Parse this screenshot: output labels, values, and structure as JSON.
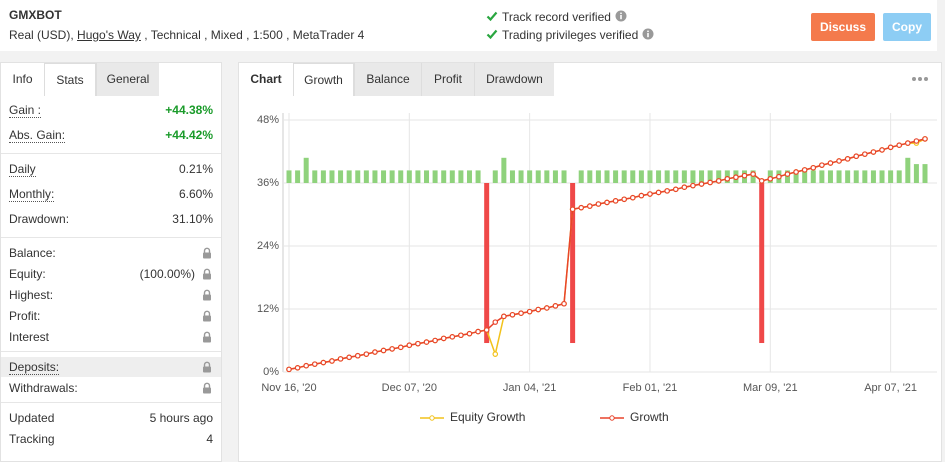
{
  "header": {
    "title": "GMXBOT",
    "account": "Real (USD),",
    "broker": "Hugo's Way",
    "details": ", Technical , Mixed , 1:500 , MetaTrader 4",
    "verifications": [
      "Track record verified",
      "Trading privileges verified"
    ],
    "buttons": [
      "Discuss",
      "Copy"
    ]
  },
  "left_tabs": {
    "items": [
      "Info",
      "Stats",
      "General"
    ],
    "active": 1
  },
  "stats": [
    [
      {
        "label": "Gain :",
        "value": "+44.38%",
        "positive": true,
        "dotted": true
      },
      {
        "label": "Abs. Gain:",
        "value": "+44.42%",
        "positive": true,
        "dotted": true
      }
    ],
    [
      {
        "label": "Daily",
        "value": "0.21%",
        "dotted": true
      },
      {
        "label": "Monthly:",
        "value": "6.60%",
        "dotted": true
      },
      {
        "label": "Drawdown:",
        "value": "31.10%"
      }
    ],
    [
      {
        "label": "Balance:",
        "locked": true
      },
      {
        "label": "Equity:",
        "value": "(100.00%)",
        "locked": true
      },
      {
        "label": "Highest:",
        "locked": true
      },
      {
        "label": "Profit:",
        "locked": true
      },
      {
        "label": "Interest",
        "locked": true
      }
    ],
    [
      {
        "label": "Deposits:",
        "locked": true,
        "dotted": true,
        "highlight": true
      },
      {
        "label": "Withdrawals:",
        "locked": true
      }
    ],
    [
      {
        "label": "Updated",
        "value": "5 hours ago"
      },
      {
        "label": "Tracking",
        "value": "4"
      }
    ]
  ],
  "chart_tabs": {
    "items": [
      "Chart",
      "Growth",
      "Balance",
      "Profit",
      "Drawdown"
    ],
    "active": 1
  },
  "chart_data": {
    "type": "line",
    "categories": [
      "Nov 16, '20",
      null,
      null,
      null,
      null,
      null,
      null,
      null,
      null,
      null,
      null,
      null,
      null,
      null,
      "Dec 07, '20",
      null,
      null,
      null,
      null,
      null,
      null,
      null,
      null,
      null,
      null,
      null,
      null,
      null,
      "Jan 04, '21",
      null,
      null,
      null,
      null,
      null,
      null,
      null,
      null,
      null,
      null,
      null,
      null,
      null,
      "Feb 01, '21",
      null,
      null,
      null,
      null,
      null,
      null,
      null,
      null,
      null,
      null,
      null,
      null,
      null,
      "Mar 09, '21",
      null,
      null,
      null,
      null,
      null,
      null,
      null,
      null,
      null,
      null,
      null,
      null,
      null,
      "Apr 07, '21",
      null,
      null,
      null,
      null
    ],
    "series": [
      {
        "name": "Equity Growth",
        "color": "#f2c21b",
        "values": [
          0.5,
          0.8,
          1.2,
          1.5,
          1.8,
          2.1,
          2.5,
          2.8,
          3.1,
          3.4,
          3.8,
          4.1,
          4.4,
          4.7,
          5.1,
          5.4,
          5.7,
          6.0,
          6.4,
          6.7,
          7.0,
          7.3,
          7.7,
          8.0,
          3.4,
          10.6,
          10.9,
          11.2,
          11.5,
          11.9,
          12.2,
          12.6,
          13.0,
          31.0,
          31.3,
          31.6,
          32.0,
          32.3,
          32.6,
          32.9,
          33.2,
          33.6,
          33.9,
          34.2,
          34.5,
          34.8,
          35.2,
          35.5,
          35.8,
          36.1,
          36.4,
          36.8,
          37.1,
          37.4,
          37.7,
          36.4,
          36.8,
          37.2,
          37.7,
          38.1,
          38.5,
          38.9,
          39.4,
          39.8,
          40.2,
          40.6,
          41.1,
          41.5,
          41.9,
          42.3,
          42.8,
          43.2,
          43.6,
          43.6,
          44.4
        ]
      },
      {
        "name": "Growth",
        "color": "#e8442c",
        "values": [
          0.5,
          0.8,
          1.2,
          1.5,
          1.8,
          2.1,
          2.5,
          2.8,
          3.1,
          3.4,
          3.8,
          4.1,
          4.4,
          4.7,
          5.1,
          5.4,
          5.7,
          6.0,
          6.4,
          6.7,
          7.0,
          7.3,
          7.7,
          8.0,
          9.5,
          10.6,
          10.9,
          11.2,
          11.5,
          11.9,
          12.2,
          12.6,
          13.0,
          31.0,
          31.3,
          31.6,
          32.0,
          32.3,
          32.6,
          32.9,
          33.2,
          33.6,
          33.9,
          34.2,
          34.5,
          34.8,
          35.2,
          35.5,
          35.8,
          36.1,
          36.4,
          36.8,
          37.1,
          37.4,
          37.7,
          36.4,
          36.8,
          37.2,
          37.7,
          38.1,
          38.5,
          38.9,
          39.4,
          39.8,
          40.2,
          40.6,
          41.1,
          41.5,
          41.9,
          42.3,
          42.8,
          43.2,
          43.6,
          44.0,
          44.4
        ]
      },
      {
        "type": "bar",
        "axis": "y2",
        "color": "#8fd27c",
        "negative_color": "#ef4848",
        "values": [
          0.2,
          0.2,
          0.4,
          0.2,
          0.2,
          0.2,
          0.2,
          0.2,
          0.2,
          0.2,
          0.2,
          0.2,
          0.2,
          0.2,
          0.2,
          0.2,
          0.2,
          0.2,
          0.2,
          0.2,
          0.2,
          0.2,
          0.2,
          -2.54,
          0.2,
          0.4,
          0.2,
          0.2,
          0.2,
          0.2,
          0.2,
          0.2,
          0.2,
          -2.54,
          0.2,
          0.2,
          0.2,
          0.2,
          0.2,
          0.2,
          0.2,
          0.2,
          0.2,
          0.2,
          0.2,
          0.2,
          0.2,
          0.2,
          0.2,
          0.2,
          0.2,
          0.2,
          0.2,
          0.2,
          0.2,
          -2.54,
          0.2,
          0.2,
          0.2,
          0.2,
          0.2,
          0.2,
          0.2,
          0.2,
          0.2,
          0.2,
          0.2,
          0.2,
          0.2,
          0.2,
          0.2,
          0.2,
          0.4,
          0.3,
          0.3
        ]
      }
    ],
    "ylim": [
      0,
      48
    ],
    "yticks": [
      {
        "value": 0,
        "label": "0%"
      },
      {
        "value": 12,
        "label": "12%"
      },
      {
        "value": 24,
        "label": "24%"
      },
      {
        "value": 36,
        "label": "36%"
      },
      {
        "value": 48,
        "label": "48%"
      }
    ],
    "y2lim": [
      -3,
      1
    ],
    "grid": true
  }
}
